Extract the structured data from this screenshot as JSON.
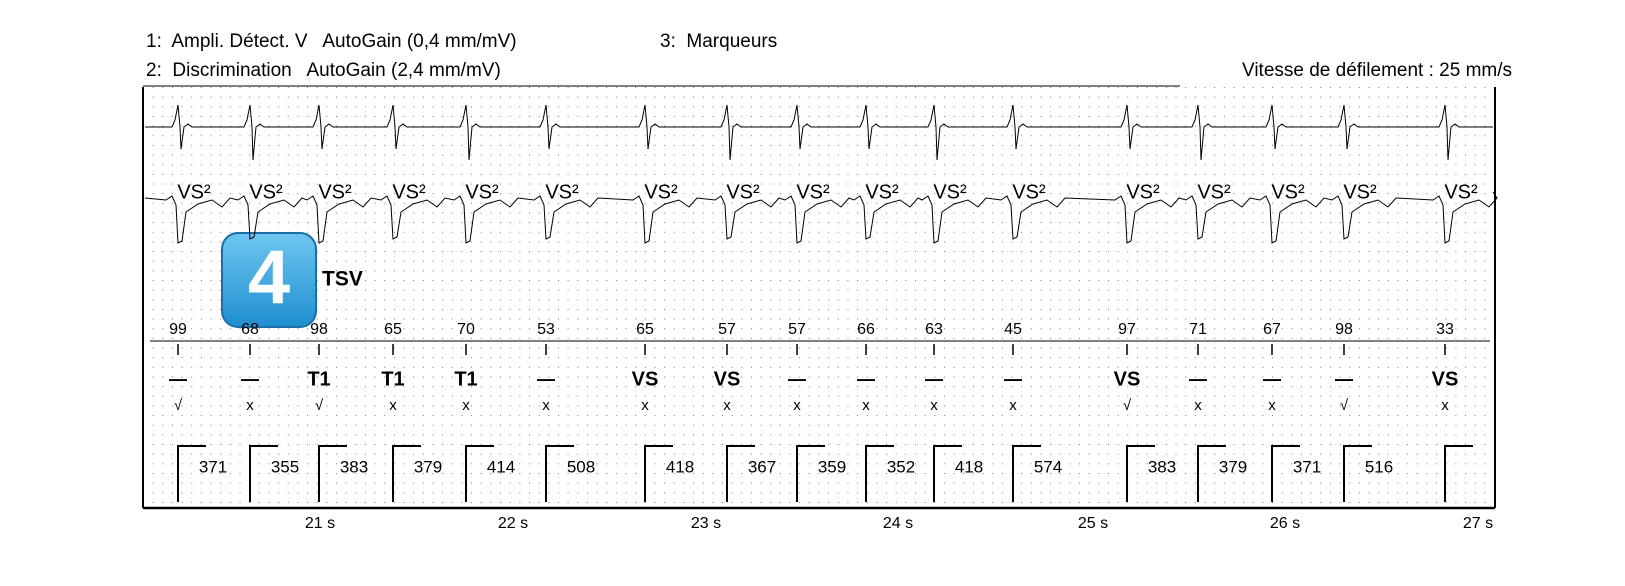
{
  "header": {
    "channel_1": "1:  Ampli. Détect. V   AutoGain (0,4 mm/mV)",
    "channel_3": "3:  Marqueurs",
    "channel_2": "2:  Discrimination   AutoGain (2,4 mm/mV)",
    "speed": "Vitesse de défilement : 25 mm/s"
  },
  "badge": "4",
  "annotation": "TSV",
  "beats": [
    {
      "label": "VS²",
      "rate": 99,
      "marker": "—",
      "check": "√",
      "interval": 371
    },
    {
      "label": "VS²",
      "rate": 68,
      "marker": "—",
      "check": "x",
      "interval": 355
    },
    {
      "label": "VS²",
      "rate": 98,
      "marker": "T1",
      "check": "√",
      "interval": 383
    },
    {
      "label": "VS²",
      "rate": 65,
      "marker": "T1",
      "check": "x",
      "interval": 379
    },
    {
      "label": "VS²",
      "rate": 70,
      "marker": "T1",
      "check": "x",
      "interval": 414
    },
    {
      "label": "VS²",
      "rate": 53,
      "marker": "—",
      "check": "x",
      "interval": 508
    },
    {
      "label": "VS²",
      "rate": 65,
      "marker": "VS",
      "check": "x",
      "interval": 418
    },
    {
      "label": "VS²",
      "rate": 57,
      "marker": "VS",
      "check": "x",
      "interval": 367
    },
    {
      "label": "VS²",
      "rate": 57,
      "marker": "—",
      "check": "x",
      "interval": 359
    },
    {
      "label": "VS²",
      "rate": 66,
      "marker": "—",
      "check": "x",
      "interval": 352
    },
    {
      "label": "VS²",
      "rate": 63,
      "marker": "—",
      "check": "x",
      "interval": 418
    },
    {
      "label": "VS²",
      "rate": 45,
      "marker": "—",
      "check": "x",
      "interval": 574
    },
    {
      "label": "VS²",
      "rate": 97,
      "marker": "VS",
      "check": "√",
      "interval": 383
    },
    {
      "label": "VS²",
      "rate": 71,
      "marker": "—",
      "check": "x",
      "interval": 379
    },
    {
      "label": "VS²",
      "rate": 67,
      "marker": "—",
      "check": "x",
      "interval": 371
    },
    {
      "label": "VS²",
      "rate": 98,
      "marker": "—",
      "check": "√",
      "interval": 516
    },
    {
      "label": "VS²",
      "rate": 33,
      "marker": "VS",
      "check": "x"
    }
  ],
  "time_axis": [
    "21 s",
    "22 s",
    "23 s",
    "24 s",
    "25 s",
    "26 s",
    "27 s"
  ]
}
